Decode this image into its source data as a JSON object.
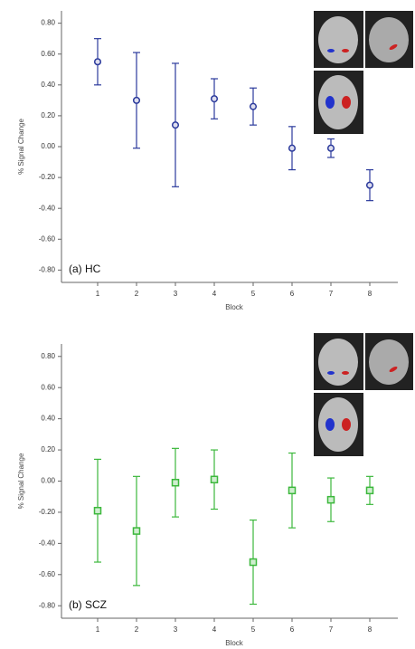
{
  "chart_data": [
    {
      "type": "errorbar",
      "annotation": "(a) HC",
      "ylabel": "% Signal Change",
      "xlabel": "Block",
      "categories": [
        "1",
        "2",
        "3",
        "4",
        "5",
        "6",
        "7",
        "8"
      ],
      "marker": "circle",
      "color": "#2b3a9c",
      "values": [
        0.55,
        0.3,
        0.14,
        0.31,
        0.26,
        -0.01,
        -0.01,
        -0.25
      ],
      "errors": [
        0.15,
        0.31,
        0.4,
        0.13,
        0.12,
        0.14,
        0.06,
        0.1
      ],
      "ylim": [
        -0.88,
        0.88
      ],
      "yticks": [
        {
          "value": 0.8,
          "label": "0.80"
        },
        {
          "value": 0.6,
          "label": "0.60"
        },
        {
          "value": 0.4,
          "label": "0.40"
        },
        {
          "value": 0.2,
          "label": "0.20"
        },
        {
          "value": 0,
          "label": "0.00"
        },
        {
          "value": -0.2,
          "label": "-0.20"
        },
        {
          "value": -0.4,
          "label": "-0.40"
        },
        {
          "value": -0.6,
          "label": "-0.60"
        },
        {
          "value": -0.8,
          "label": "-0.80"
        }
      ]
    },
    {
      "type": "errorbar",
      "annotation": "(b) SCZ",
      "ylabel": "% Signal Change",
      "xlabel": "Block",
      "categories": [
        "1",
        "2",
        "3",
        "4",
        "5",
        "6",
        "7",
        "8"
      ],
      "marker": "square",
      "color": "#3cb83c",
      "values": [
        -0.19,
        -0.32,
        -0.01,
        0.01,
        -0.52,
        -0.06,
        -0.12,
        -0.06
      ],
      "errors": [
        0.33,
        0.35,
        0.22,
        0.19,
        0.27,
        0.24,
        0.14,
        0.09
      ],
      "ylim": [
        -0.88,
        0.88
      ],
      "yticks": [
        {
          "value": 0.8,
          "label": "0.80"
        },
        {
          "value": 0.6,
          "label": "0.60"
        },
        {
          "value": 0.4,
          "label": "0.40"
        },
        {
          "value": 0.2,
          "label": "0.20"
        },
        {
          "value": 0,
          "label": "0.00"
        },
        {
          "value": -0.2,
          "label": "-0.20"
        },
        {
          "value": -0.4,
          "label": "-0.40"
        },
        {
          "value": -0.6,
          "label": "-0.60"
        },
        {
          "value": -0.8,
          "label": "-0.80"
        }
      ]
    }
  ]
}
